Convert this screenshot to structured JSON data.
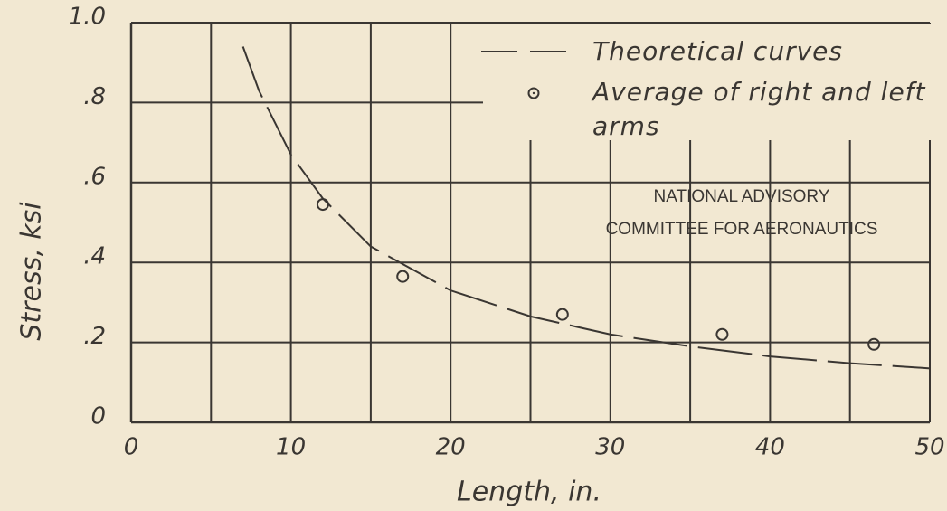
{
  "chart_data": {
    "type": "scatter",
    "xlabel": "Length, in.",
    "ylabel": "Stress, ksi",
    "annotation": [
      "NATIONAL ADVISORY",
      "COMMITTEE FOR AERONAUTICS"
    ],
    "xlim": [
      0,
      50
    ],
    "ylim": [
      0,
      1
    ],
    "xticks": [
      0,
      10,
      20,
      30,
      40,
      50
    ],
    "x_minor_ticks": [
      5,
      15,
      25,
      35,
      45
    ],
    "yticks": [
      0,
      {
        "value": 0.2,
        "label": ".2"
      },
      {
        "value": 0.4,
        "label": ".4"
      },
      {
        "value": 0.6,
        "label": ".6"
      },
      {
        "value": 0.8,
        "label": ".8"
      },
      {
        "value": 1,
        "label": "1.0"
      }
    ],
    "grid": true,
    "legend": "upper right",
    "color": "#3a3632",
    "curve": {
      "name": "Theoretical curves",
      "x": [
        7,
        8,
        10,
        12,
        15,
        20,
        25,
        30,
        35,
        40,
        45,
        50
      ],
      "values": [
        0.94,
        0.83,
        0.67,
        0.56,
        0.44,
        0.33,
        0.265,
        0.22,
        0.19,
        0.165,
        0.148,
        0.135
      ]
    },
    "series": [
      {
        "name": "Average of right and left arms",
        "x": [
          12,
          17,
          27,
          37,
          46.5
        ],
        "values": [
          0.545,
          0.365,
          0.27,
          0.22,
          0.195
        ]
      }
    ]
  }
}
